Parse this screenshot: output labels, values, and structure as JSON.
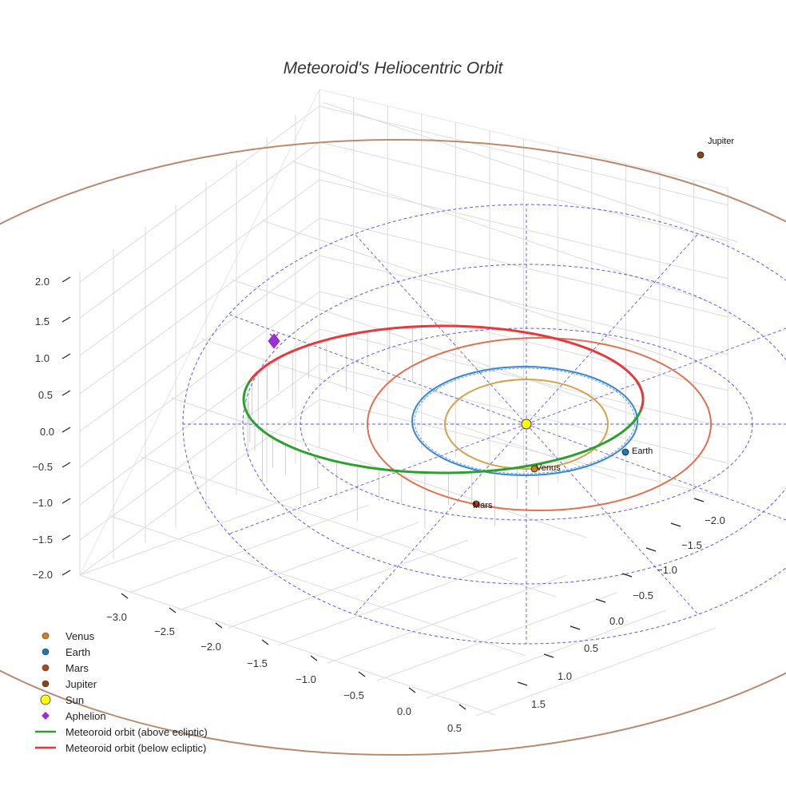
{
  "chart_data": {
    "type": "line",
    "projection": "3d",
    "title": "Meteoroid's Heliocentric Orbit",
    "grid": true,
    "legend_placement": "bottom-left",
    "axes": {
      "x": {
        "ticks": [
          "−3.0",
          "−2.5",
          "−2.0",
          "−1.5",
          "−1.0",
          "−0.5",
          "0.0",
          "0.5"
        ],
        "range": [
          -3.0,
          0.5
        ]
      },
      "y": {
        "ticks": [
          "−2.0",
          "−1.5",
          "−1.0",
          "−0.5",
          "0.0",
          "0.5",
          "1.0",
          "1.5"
        ],
        "range": [
          -2.0,
          1.5
        ]
      },
      "z": {
        "ticks": [
          "2.0",
          "1.5",
          "1.0",
          "0.5",
          "0.0",
          "−0.5",
          "−1.0",
          "−1.5",
          "−2.0"
        ],
        "range": [
          -2.0,
          2.0
        ]
      }
    },
    "planets": [
      {
        "name": "Venus",
        "label": "Venus",
        "orbit_radius_au": 0.72,
        "color": "#d4a24a",
        "marker_color": "#d4801e"
      },
      {
        "name": "Earth",
        "label": "Earth",
        "orbit_radius_au": 1.0,
        "color": "#3a86d4",
        "marker_color": "#1f77b4"
      },
      {
        "name": "Mars",
        "label": "Mars",
        "orbit_radius_au": 1.52,
        "color": "#e07050",
        "marker_color": "#b5461c"
      },
      {
        "name": "Jupiter",
        "label": "Jupiter",
        "orbit_radius_au": 5.2,
        "color": "#b88a6e",
        "marker_color": "#8b4513"
      }
    ],
    "sun": {
      "name": "Sun",
      "color": "#ffff00"
    },
    "aphelion": {
      "name": "Aphelion",
      "color": "#9b30d0"
    },
    "series": [
      {
        "name": "Meteoroid orbit (above ecliptic)",
        "color": "#2ca02c"
      },
      {
        "name": "Meteoroid orbit (below ecliptic)",
        "color": "#e8383d"
      }
    ],
    "legend": [
      {
        "label": "Venus",
        "symbol": "circle",
        "color": "#d4801e"
      },
      {
        "label": "Earth",
        "symbol": "circle",
        "color": "#1f77b4"
      },
      {
        "label": "Mars",
        "symbol": "circle",
        "color": "#b5461c"
      },
      {
        "label": "Jupiter",
        "symbol": "circle",
        "color": "#8b4513"
      },
      {
        "label": "Sun",
        "symbol": "circle-large",
        "color": "#ffff00"
      },
      {
        "label": "Aphelion",
        "symbol": "diamond",
        "color": "#9b30d0"
      },
      {
        "label": "Meteoroid orbit (above ecliptic)",
        "symbol": "line",
        "color": "#2ca02c"
      },
      {
        "label": "Meteoroid orbit (below ecliptic)",
        "symbol": "line",
        "color": "#e8383d"
      }
    ]
  }
}
